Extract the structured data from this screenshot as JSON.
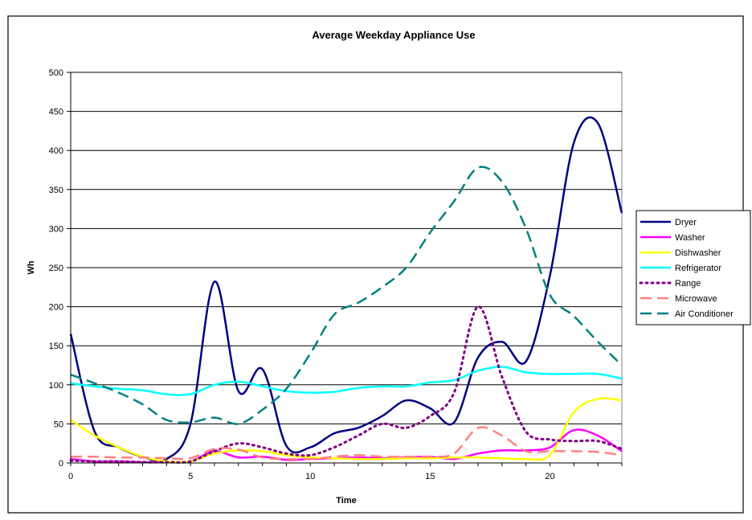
{
  "chart_data": {
    "type": "line",
    "title": "Average Weekday Appliance Use",
    "xlabel": "Time",
    "ylabel": "Wh",
    "xlim": [
      0,
      23
    ],
    "ylim": [
      0,
      500
    ],
    "x_ticks": [
      0,
      5,
      10,
      15,
      20
    ],
    "y_ticks": [
      0,
      50,
      100,
      150,
      200,
      250,
      300,
      350,
      400,
      450,
      500
    ],
    "grid": "horizontal",
    "legend_position": "right",
    "x": [
      0,
      1,
      2,
      3,
      4,
      5,
      6,
      7,
      8,
      9,
      10,
      11,
      12,
      13,
      14,
      15,
      16,
      17,
      18,
      19,
      20,
      21,
      22,
      23
    ],
    "series": [
      {
        "name": "Dryer",
        "color": "#000080",
        "dash": "solid",
        "values": [
          165,
          40,
          20,
          8,
          5,
          50,
          232,
          92,
          120,
          22,
          20,
          38,
          45,
          60,
          80,
          70,
          52,
          135,
          155,
          130,
          240,
          410,
          435,
          320
        ]
      },
      {
        "name": "Washer",
        "color": "#ff00ff",
        "dash": "solid",
        "values": [
          5,
          2,
          2,
          1,
          1,
          2,
          15,
          7,
          8,
          4,
          5,
          6,
          7,
          6,
          7,
          8,
          5,
          12,
          16,
          16,
          20,
          42,
          35,
          15
        ]
      },
      {
        "name": "Dishwasher",
        "color": "#ffff00",
        "dash": "solid",
        "values": [
          55,
          35,
          20,
          8,
          2,
          2,
          12,
          16,
          15,
          10,
          7,
          6,
          5,
          5,
          6,
          6,
          7,
          7,
          6,
          5,
          10,
          65,
          82,
          80
        ]
      },
      {
        "name": "Refrigerator",
        "color": "#00ffff",
        "dash": "solid",
        "values": [
          102,
          98,
          95,
          93,
          88,
          88,
          100,
          104,
          98,
          92,
          90,
          91,
          96,
          98,
          98,
          103,
          106,
          118,
          123,
          116,
          114,
          114,
          114,
          108
        ]
      },
      {
        "name": "Range",
        "color": "#800080",
        "dash": "dot",
        "values": [
          3,
          2,
          2,
          1,
          1,
          2,
          15,
          25,
          20,
          12,
          10,
          20,
          35,
          50,
          45,
          60,
          90,
          200,
          110,
          40,
          30,
          28,
          28,
          18
        ]
      },
      {
        "name": "Microwave",
        "color": "#ff8080",
        "dash": "dash",
        "values": [
          8,
          8,
          7,
          7,
          6,
          6,
          18,
          17,
          7,
          5,
          5,
          8,
          10,
          8,
          8,
          8,
          12,
          45,
          35,
          15,
          15,
          15,
          14,
          10
        ]
      },
      {
        "name": "Air Conditioner",
        "color": "#008080",
        "dash": "dash",
        "values": [
          113,
          102,
          90,
          75,
          55,
          52,
          58,
          50,
          68,
          95,
          140,
          190,
          205,
          225,
          250,
          295,
          335,
          378,
          360,
          300,
          215,
          188,
          155,
          125
        ]
      }
    ]
  }
}
